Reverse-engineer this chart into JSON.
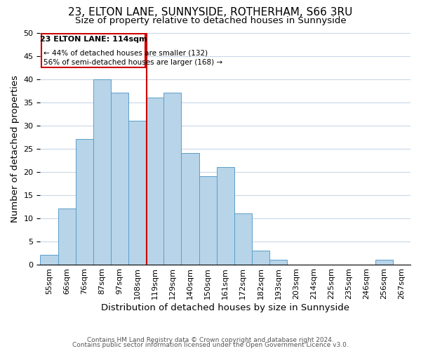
{
  "title": "23, ELTON LANE, SUNNYSIDE, ROTHERHAM, S66 3RU",
  "subtitle": "Size of property relative to detached houses in Sunnyside",
  "xlabel": "Distribution of detached houses by size in Sunnyside",
  "ylabel": "Number of detached properties",
  "bin_labels": [
    "55sqm",
    "66sqm",
    "76sqm",
    "87sqm",
    "97sqm",
    "108sqm",
    "119sqm",
    "129sqm",
    "140sqm",
    "150sqm",
    "161sqm",
    "172sqm",
    "182sqm",
    "193sqm",
    "203sqm",
    "214sqm",
    "225sqm",
    "235sqm",
    "246sqm",
    "256sqm",
    "267sqm"
  ],
  "bar_values": [
    2,
    12,
    27,
    40,
    37,
    31,
    36,
    37,
    24,
    19,
    21,
    11,
    3,
    1,
    0,
    0,
    0,
    0,
    0,
    1,
    0
  ],
  "bar_color": "#b8d4e8",
  "bar_edge_color": "#5a9ec9",
  "marker_label": "23 ELTON LANE: 114sqm",
  "marker_color": "#cc0000",
  "annotation_line1": "← 44% of detached houses are smaller (132)",
  "annotation_line2": "56% of semi-detached houses are larger (168) →",
  "annotation_box_color": "#cc0000",
  "ylim": [
    0,
    50
  ],
  "yticks": [
    0,
    5,
    10,
    15,
    20,
    25,
    30,
    35,
    40,
    45,
    50
  ],
  "footer_line1": "Contains HM Land Registry data © Crown copyright and database right 2024.",
  "footer_line2": "Contains public sector information licensed under the Open Government Licence v3.0.",
  "bg_color": "#ffffff",
  "grid_color": "#c8d8e8",
  "title_fontsize": 11,
  "subtitle_fontsize": 9.5,
  "axis_label_fontsize": 9.5,
  "tick_fontsize": 8,
  "footer_fontsize": 6.5
}
